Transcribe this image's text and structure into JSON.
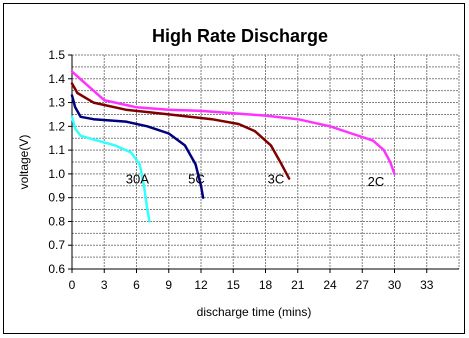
{
  "chart_data": {
    "type": "line",
    "title": "High Rate Discharge",
    "xlabel": "discharge time (mins)",
    "ylabel": "voltage(V)",
    "xlim": [
      0,
      36
    ],
    "ylim": [
      0.6,
      1.5
    ],
    "x_ticks": [
      "0",
      "3",
      "6",
      "9",
      "12",
      "15",
      "18",
      "21",
      "24",
      "27",
      "30",
      "33"
    ],
    "y_ticks": [
      "0.6",
      "0.7",
      "0.8",
      "0.9",
      "1.0",
      "1.1",
      "1.2",
      "1.3",
      "1.4",
      "1.5"
    ],
    "grid": true,
    "legend": "none",
    "series": [
      {
        "name": "30A",
        "color": "#33ffff",
        "label_at": [
          5.0,
          0.98
        ],
        "points": [
          [
            0,
            1.24
          ],
          [
            0.3,
            1.19
          ],
          [
            0.8,
            1.16
          ],
          [
            2,
            1.145
          ],
          [
            4,
            1.12
          ],
          [
            5.5,
            1.09
          ],
          [
            6.3,
            1.04
          ],
          [
            6.7,
            0.95
          ],
          [
            7.0,
            0.85
          ],
          [
            7.2,
            0.8
          ]
        ]
      },
      {
        "name": "5C",
        "color": "#000080",
        "label_at": [
          10.8,
          0.98
        ],
        "points": [
          [
            0,
            1.33
          ],
          [
            0.3,
            1.28
          ],
          [
            0.8,
            1.24
          ],
          [
            2,
            1.23
          ],
          [
            5,
            1.22
          ],
          [
            7,
            1.2
          ],
          [
            9,
            1.17
          ],
          [
            10.5,
            1.12
          ],
          [
            11.5,
            1.04
          ],
          [
            12.0,
            0.95
          ],
          [
            12.2,
            0.9
          ]
        ]
      },
      {
        "name": "3C",
        "color": "#800000",
        "label_at": [
          18.2,
          0.98
        ],
        "points": [
          [
            0,
            1.38
          ],
          [
            0.5,
            1.34
          ],
          [
            2,
            1.3
          ],
          [
            5,
            1.27
          ],
          [
            9,
            1.25
          ],
          [
            13,
            1.23
          ],
          [
            15.5,
            1.21
          ],
          [
            17,
            1.18
          ],
          [
            18.5,
            1.12
          ],
          [
            19.5,
            1.04
          ],
          [
            20.2,
            0.98
          ]
        ]
      },
      {
        "name": "2C",
        "color": "#ff33ff",
        "label_at": [
          27.5,
          0.97
        ],
        "points": [
          [
            0,
            1.43
          ],
          [
            1,
            1.39
          ],
          [
            3,
            1.31
          ],
          [
            6,
            1.28
          ],
          [
            9,
            1.27
          ],
          [
            12,
            1.265
          ],
          [
            15,
            1.255
          ],
          [
            18,
            1.245
          ],
          [
            21,
            1.23
          ],
          [
            24,
            1.2
          ],
          [
            26,
            1.17
          ],
          [
            28,
            1.14
          ],
          [
            29,
            1.1
          ],
          [
            29.6,
            1.05
          ],
          [
            30.0,
            1.0
          ]
        ]
      }
    ]
  }
}
